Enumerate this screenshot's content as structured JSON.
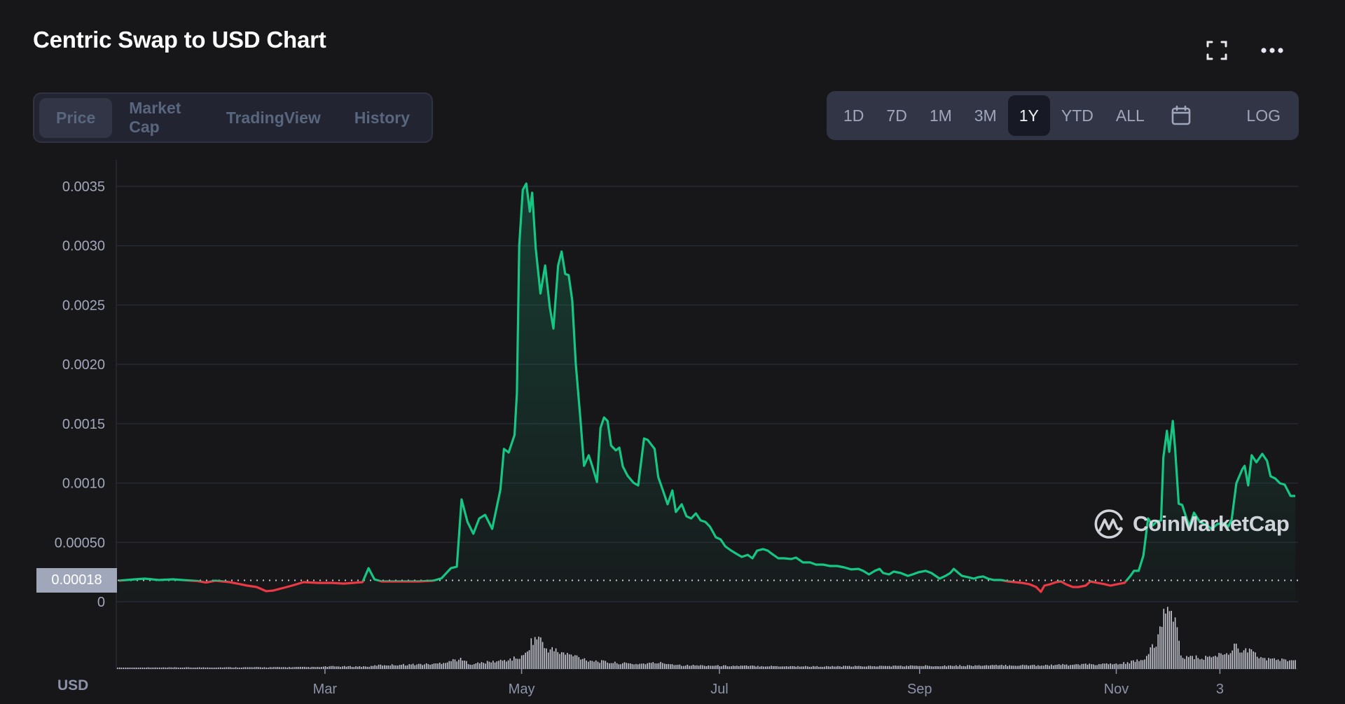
{
  "header": {
    "title": "Centric Swap to USD Chart",
    "fullscreen_icon": "fullscreen-icon",
    "more_icon": "more-horizontal-icon"
  },
  "tabs": [
    {
      "label": "Price",
      "active": true
    },
    {
      "label": "Market Cap",
      "active": false
    },
    {
      "label": "TradingView",
      "active": false
    },
    {
      "label": "History",
      "active": false
    }
  ],
  "ranges": [
    {
      "label": "1D",
      "active": false
    },
    {
      "label": "7D",
      "active": false
    },
    {
      "label": "1M",
      "active": false
    },
    {
      "label": "3M",
      "active": false
    },
    {
      "label": "1Y",
      "active": true
    },
    {
      "label": "YTD",
      "active": false
    },
    {
      "label": "ALL",
      "active": false
    }
  ],
  "calendar_icon": "calendar-icon",
  "log_label": "LOG",
  "current_price_label": "0.00018",
  "currency_label": "USD",
  "watermark": "CoinMarketCap",
  "colors": {
    "up": "#16c784",
    "down": "#ea3943",
    "grid": "#262834",
    "volume": "#c5c8d2",
    "background": "#17171a"
  },
  "chart_data": {
    "type": "area",
    "title": "Centric Swap to USD Chart",
    "xlabel": "",
    "ylabel": "USD",
    "ylim": [
      0,
      0.0035
    ],
    "yticks": [
      "0.0035",
      "0.0030",
      "0.0025",
      "0.0020",
      "0.0015",
      "0.0010",
      "0.00050",
      "0"
    ],
    "ytick_values": [
      0.0035,
      0.003,
      0.0025,
      0.002,
      0.0015,
      0.001,
      0.0005,
      0
    ],
    "xticks": [
      {
        "label": "Mar",
        "t": 0.176
      },
      {
        "label": "May",
        "t": 0.343
      },
      {
        "label": "Jul",
        "t": 0.511
      },
      {
        "label": "Sep",
        "t": 0.681
      },
      {
        "label": "Nov",
        "t": 0.848
      },
      {
        "label": "3",
        "t": 0.936
      }
    ],
    "grid": true,
    "reference_line": {
      "value": 0.00018,
      "style": "dotted"
    },
    "series": [
      {
        "name": "Price",
        "points_t_value": [
          [
            0.001,
            0.000177
          ],
          [
            0.011,
            0.000186
          ],
          [
            0.023,
            0.000195
          ],
          [
            0.035,
            0.000183
          ],
          [
            0.047,
            0.000189
          ],
          [
            0.059,
            0.00018
          ],
          [
            0.068,
            0.000174
          ],
          [
            0.075,
            0.000162
          ],
          [
            0.083,
            0.000177
          ],
          [
            0.095,
            0.000165
          ],
          [
            0.104,
            0.000148
          ],
          [
            0.11,
            0.000136
          ],
          [
            0.118,
            0.000124
          ],
          [
            0.126,
            8.9e-05
          ],
          [
            0.132,
            9.4e-05
          ],
          [
            0.139,
            0.000112
          ],
          [
            0.148,
            0.000136
          ],
          [
            0.158,
            0.000165
          ],
          [
            0.17,
            0.000159
          ],
          [
            0.182,
            0.000159
          ],
          [
            0.192,
            0.000153
          ],
          [
            0.2,
            0.000159
          ],
          [
            0.208,
            0.000165
          ],
          [
            0.213,
            0.000283
          ],
          [
            0.218,
            0.000189
          ],
          [
            0.224,
            0.000171
          ],
          [
            0.24,
            0.000171
          ],
          [
            0.256,
            0.000171
          ],
          [
            0.268,
            0.000177
          ],
          [
            0.275,
            0.000198
          ],
          [
            0.283,
            0.000283
          ],
          [
            0.288,
            0.000295
          ],
          [
            0.292,
            0.000862
          ],
          [
            0.297,
            0.000673
          ],
          [
            0.302,
            0.000573
          ],
          [
            0.307,
            0.000702
          ],
          [
            0.312,
            0.000732
          ],
          [
            0.318,
            0.000614
          ],
          [
            0.325,
            0.000944
          ],
          [
            0.328,
            0.001287
          ],
          [
            0.332,
            0.001257
          ],
          [
            0.337,
            0.001405
          ],
          [
            0.339,
            0.001759
          ],
          [
            0.341,
            0.002999
          ],
          [
            0.344,
            0.003471
          ],
          [
            0.347,
            0.003523
          ],
          [
            0.35,
            0.003287
          ],
          [
            0.352,
            0.003446
          ],
          [
            0.355,
            0.002975
          ],
          [
            0.359,
            0.002597
          ],
          [
            0.363,
            0.002833
          ],
          [
            0.367,
            0.002479
          ],
          [
            0.37,
            0.002302
          ],
          [
            0.374,
            0.002833
          ],
          [
            0.377,
            0.002951
          ],
          [
            0.38,
            0.002762
          ],
          [
            0.383,
            0.002751
          ],
          [
            0.386,
            0.002538
          ],
          [
            0.389,
            0.002007
          ],
          [
            0.393,
            0.001535
          ],
          [
            0.396,
            0.001145
          ],
          [
            0.4,
            0.001234
          ],
          [
            0.403,
            0.001145
          ],
          [
            0.407,
            0.001009
          ],
          [
            0.41,
            0.001464
          ],
          [
            0.413,
            0.001552
          ],
          [
            0.416,
            0.001523
          ],
          [
            0.419,
            0.001316
          ],
          [
            0.423,
            0.001275
          ],
          [
            0.426,
            0.001298
          ],
          [
            0.429,
            0.001139
          ],
          [
            0.433,
            0.001062
          ],
          [
            0.438,
            0.001003
          ],
          [
            0.442,
            0.00098
          ],
          [
            0.447,
            0.001375
          ],
          [
            0.45,
            0.001364
          ],
          [
            0.456,
            0.001287
          ],
          [
            0.459,
            0.001051
          ],
          [
            0.464,
            0.000909
          ],
          [
            0.467,
            0.000821
          ],
          [
            0.471,
            0.000938
          ],
          [
            0.474,
            0.000756
          ],
          [
            0.479,
            0.000821
          ],
          [
            0.483,
            0.00072
          ],
          [
            0.487,
            0.000702
          ],
          [
            0.491,
            0.000744
          ],
          [
            0.495,
            0.000685
          ],
          [
            0.499,
            0.000673
          ],
          [
            0.503,
            0.000632
          ],
          [
            0.508,
            0.000543
          ],
          [
            0.512,
            0.000525
          ],
          [
            0.516,
            0.000466
          ],
          [
            0.521,
            0.000431
          ],
          [
            0.526,
            0.000401
          ],
          [
            0.53,
            0.000378
          ],
          [
            0.535,
            0.000395
          ],
          [
            0.539,
            0.000366
          ],
          [
            0.543,
            0.000431
          ],
          [
            0.548,
            0.000443
          ],
          [
            0.552,
            0.000431
          ],
          [
            0.556,
            0.000401
          ],
          [
            0.561,
            0.000366
          ],
          [
            0.566,
            0.000366
          ],
          [
            0.572,
            0.00036
          ],
          [
            0.576,
            0.000372
          ],
          [
            0.582,
            0.000331
          ],
          [
            0.588,
            0.000331
          ],
          [
            0.593,
            0.000313
          ],
          [
            0.599,
            0.000313
          ],
          [
            0.605,
            0.000301
          ],
          [
            0.611,
            0.000301
          ],
          [
            0.617,
            0.000289
          ],
          [
            0.623,
            0.000272
          ],
          [
            0.629,
            0.000277
          ],
          [
            0.633,
            0.00026
          ],
          [
            0.638,
            0.00023
          ],
          [
            0.643,
            0.00026
          ],
          [
            0.647,
            0.000277
          ],
          [
            0.65,
            0.000242
          ],
          [
            0.655,
            0.00023
          ],
          [
            0.659,
            0.000254
          ],
          [
            0.665,
            0.000242
          ],
          [
            0.671,
            0.000218
          ],
          [
            0.675,
            0.00023
          ],
          [
            0.68,
            0.000248
          ],
          [
            0.686,
            0.00026
          ],
          [
            0.691,
            0.000242
          ],
          [
            0.698,
            0.000195
          ],
          [
            0.703,
            0.000218
          ],
          [
            0.707,
            0.000242
          ],
          [
            0.71,
            0.000277
          ],
          [
            0.714,
            0.000242
          ],
          [
            0.717,
            0.000218
          ],
          [
            0.722,
            0.000207
          ],
          [
            0.727,
            0.000195
          ],
          [
            0.731,
            0.000207
          ],
          [
            0.735,
            0.000213
          ],
          [
            0.739,
            0.000195
          ],
          [
            0.744,
            0.000183
          ],
          [
            0.75,
            0.000183
          ],
          [
            0.756,
            0.000171
          ],
          [
            0.762,
            0.000165
          ],
          [
            0.768,
            0.000159
          ],
          [
            0.774,
            0.000148
          ],
          [
            0.78,
            0.000124
          ],
          [
            0.784,
            8.3e-05
          ],
          [
            0.787,
            0.000136
          ],
          [
            0.792,
            0.000148
          ],
          [
            0.797,
            0.000165
          ],
          [
            0.801,
            0.000171
          ],
          [
            0.805,
            0.000148
          ],
          [
            0.811,
            0.000124
          ],
          [
            0.816,
            0.000124
          ],
          [
            0.822,
            0.000136
          ],
          [
            0.826,
            0.000171
          ],
          [
            0.832,
            0.000159
          ],
          [
            0.838,
            0.000148
          ],
          [
            0.843,
            0.000136
          ],
          [
            0.849,
            0.000148
          ],
          [
            0.855,
            0.000159
          ],
          [
            0.86,
            0.000218
          ],
          [
            0.863,
            0.00026
          ],
          [
            0.867,
            0.00026
          ],
          [
            0.871,
            0.000389
          ],
          [
            0.875,
            0.000702
          ],
          [
            0.879,
            0.000643
          ],
          [
            0.882,
            0.000673
          ],
          [
            0.886,
            0.000685
          ],
          [
            0.888,
            0.001216
          ],
          [
            0.891,
            0.00144
          ],
          [
            0.893,
            0.001263
          ],
          [
            0.896,
            0.001523
          ],
          [
            0.898,
            0.001287
          ],
          [
            0.901,
            0.000826
          ],
          [
            0.904,
            0.000815
          ],
          [
            0.91,
            0.000632
          ],
          [
            0.914,
            0.00075
          ],
          [
            0.919,
            0.000673
          ],
          [
            0.925,
            0.000643
          ],
          [
            0.929,
            0.000614
          ],
          [
            0.934,
            0.000655
          ],
          [
            0.94,
            0.000661
          ],
          [
            0.943,
            0.000632
          ],
          [
            0.946,
            0.000691
          ],
          [
            0.95,
            0.000998
          ],
          [
            0.955,
            0.001116
          ],
          [
            0.957,
            0.001145
          ],
          [
            0.96,
            0.00098
          ],
          [
            0.963,
            0.001234
          ],
          [
            0.967,
            0.001175
          ],
          [
            0.972,
            0.001246
          ],
          [
            0.976,
            0.001187
          ],
          [
            0.979,
            0.001057
          ],
          [
            0.983,
            0.001039
          ],
          [
            0.987,
            0.000998
          ],
          [
            0.991,
            0.000986
          ],
          [
            0.996,
            0.000891
          ],
          [
            1.0,
            0.000891
          ]
        ]
      }
    ],
    "volume": {
      "note": "relative heights 0-100 (unlabeled axis)",
      "keyframes_t_height": [
        [
          0.0,
          2
        ],
        [
          0.17,
          3
        ],
        [
          0.18,
          4
        ],
        [
          0.215,
          4
        ],
        [
          0.22,
          6
        ],
        [
          0.27,
          8
        ],
        [
          0.29,
          16
        ],
        [
          0.3,
          8
        ],
        [
          0.33,
          14
        ],
        [
          0.345,
          20
        ],
        [
          0.35,
          40
        ],
        [
          0.354,
          48
        ],
        [
          0.358,
          52
        ],
        [
          0.362,
          34
        ],
        [
          0.37,
          30
        ],
        [
          0.38,
          24
        ],
        [
          0.39,
          20
        ],
        [
          0.4,
          14
        ],
        [
          0.42,
          10
        ],
        [
          0.44,
          8
        ],
        [
          0.46,
          10
        ],
        [
          0.48,
          6
        ],
        [
          0.52,
          5
        ],
        [
          0.6,
          4
        ],
        [
          0.68,
          5
        ],
        [
          0.78,
          6
        ],
        [
          0.85,
          8
        ],
        [
          0.87,
          14
        ],
        [
          0.875,
          25
        ],
        [
          0.882,
          40
        ],
        [
          0.887,
          80
        ],
        [
          0.889,
          90
        ],
        [
          0.893,
          78
        ],
        [
          0.896,
          100
        ],
        [
          0.9,
          60
        ],
        [
          0.903,
          22
        ],
        [
          0.91,
          18
        ],
        [
          0.925,
          18
        ],
        [
          0.935,
          22
        ],
        [
          0.945,
          28
        ],
        [
          0.95,
          38
        ],
        [
          0.955,
          30
        ],
        [
          0.96,
          30
        ],
        [
          0.97,
          18
        ],
        [
          0.99,
          14
        ],
        [
          1.0,
          14
        ]
      ]
    }
  }
}
